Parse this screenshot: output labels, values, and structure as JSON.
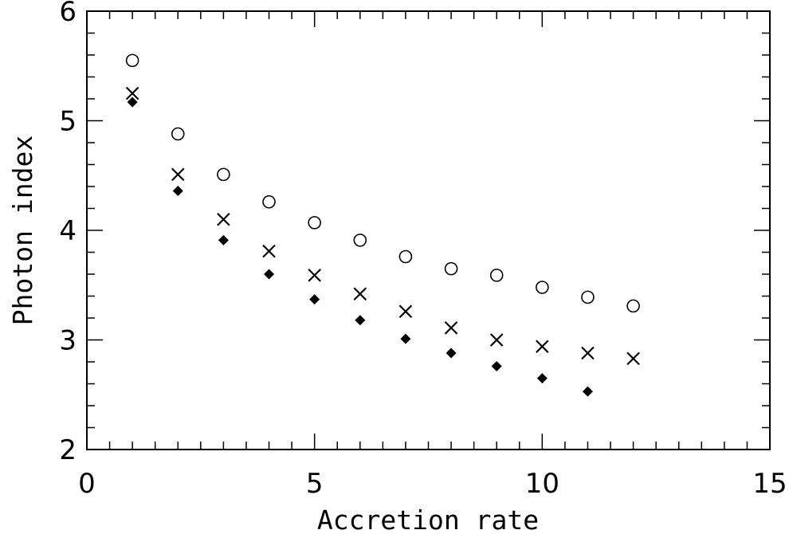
{
  "chart_data": {
    "type": "scatter",
    "title": "",
    "xlabel": "Accretion rate",
    "ylabel": "Photon index",
    "xlim": [
      0,
      15
    ],
    "ylim": [
      2,
      6
    ],
    "xticks": [
      0,
      5,
      10,
      15
    ],
    "xtick_labels": [
      "0",
      "5",
      "10",
      "15"
    ],
    "yticks": [
      2,
      3,
      4,
      5,
      6
    ],
    "ytick_labels": [
      "2",
      "3",
      "4",
      "5",
      "6"
    ],
    "grid": false,
    "legend": "none",
    "series": [
      {
        "marker": "open-circle",
        "color": "#000000",
        "x": [
          1,
          2,
          3,
          4,
          5,
          6,
          7,
          8,
          9,
          10,
          11,
          12
        ],
        "y": [
          5.55,
          4.88,
          4.51,
          4.26,
          4.07,
          3.91,
          3.76,
          3.65,
          3.59,
          3.48,
          3.39,
          3.31
        ]
      },
      {
        "marker": "cross",
        "color": "#000000",
        "x": [
          1,
          2,
          3,
          4,
          5,
          6,
          7,
          8,
          9,
          10,
          11,
          12
        ],
        "y": [
          5.25,
          4.51,
          4.1,
          3.81,
          3.59,
          3.42,
          3.26,
          3.11,
          3.0,
          2.94,
          2.88,
          2.83
        ]
      },
      {
        "marker": "filled-diamond",
        "color": "#000000",
        "x": [
          1,
          2,
          3,
          4,
          5,
          6,
          7,
          8,
          9,
          10,
          11
        ],
        "y": [
          5.17,
          4.36,
          3.91,
          3.6,
          3.37,
          3.18,
          3.01,
          2.88,
          2.76,
          2.65,
          2.53
        ]
      }
    ]
  }
}
